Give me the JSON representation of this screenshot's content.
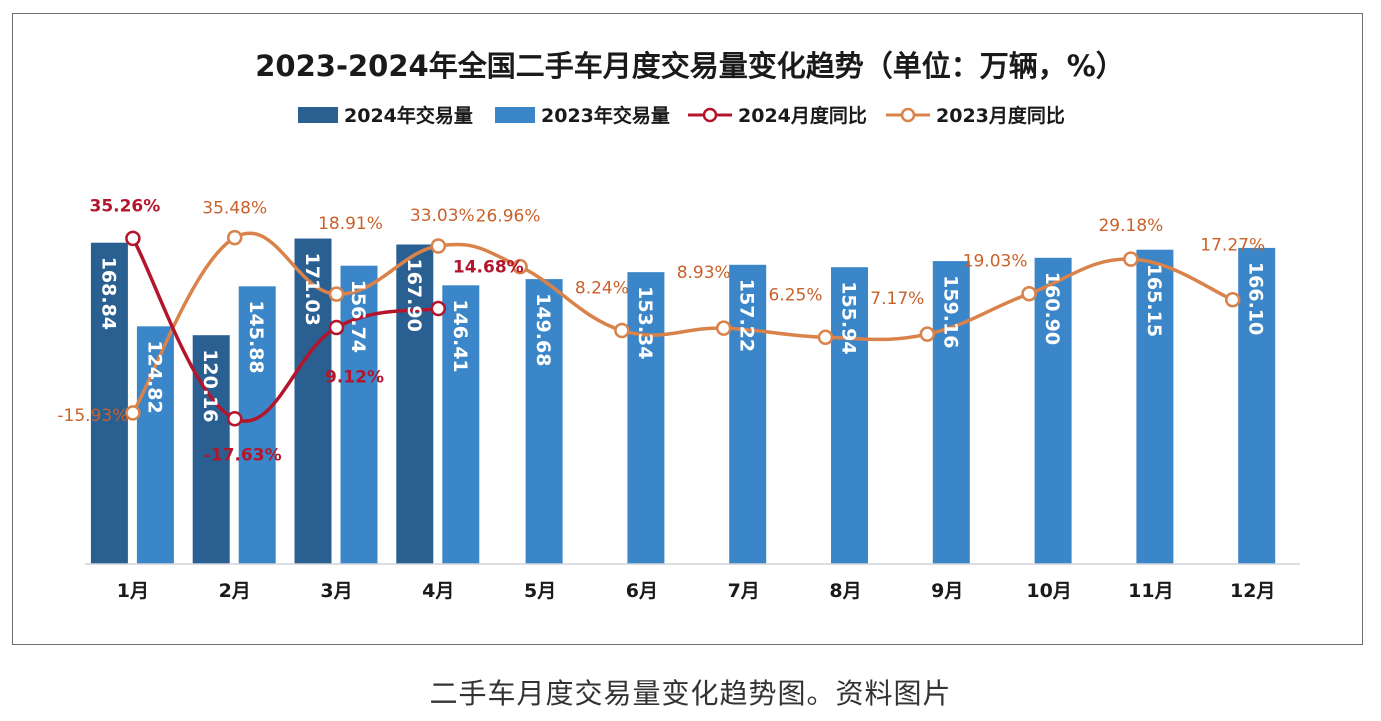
{
  "caption": "二手车月度交易量变化趋势图。资料图片",
  "chart_data": {
    "type": "bar",
    "title": "2023-2024年全国二手车月度交易量变化趋势（单位：万辆，%）",
    "xlabel": "",
    "ylabel": "",
    "categories": [
      "1月",
      "2月",
      "3月",
      "4月",
      "5月",
      "6月",
      "7月",
      "8月",
      "9月",
      "10月",
      "11月",
      "12月"
    ],
    "ylim": [
      0,
      180
    ],
    "y2lim": [
      -40,
      40
    ],
    "grid": false,
    "legend_position": "top-center",
    "colors": {
      "bar2024": "#2a5f92",
      "bar2023": "#3b86c8",
      "line2024": "#b3162c",
      "line2023": "#d9824a"
    },
    "series": [
      {
        "name": "2024年交易量",
        "kind": "bar",
        "values": [
          168.84,
          120.16,
          171.03,
          167.9,
          null,
          null,
          null,
          null,
          null,
          null,
          null,
          null
        ],
        "labels": [
          "168.84",
          "120.16",
          "171.03",
          "167.90"
        ]
      },
      {
        "name": "2023年交易量",
        "kind": "bar",
        "values": [
          124.82,
          145.88,
          156.74,
          146.41,
          149.68,
          153.34,
          157.22,
          155.94,
          159.16,
          160.9,
          165.15,
          166.1
        ],
        "labels": [
          "124.82",
          "145.88",
          "156.74",
          "146.41",
          "149.68",
          "153.34",
          "157.22",
          "155.94",
          "159.16",
          "160.90",
          "165.15",
          "166.10"
        ]
      },
      {
        "name": "2024月度同比",
        "kind": "line",
        "axis": "right",
        "values": [
          35.26,
          -17.63,
          9.12,
          14.68,
          null,
          null,
          null,
          null,
          null,
          null,
          null,
          null
        ],
        "labels": [
          "35.26%",
          "-17.63%",
          "9.12%",
          "14.68%"
        ]
      },
      {
        "name": "2023月度同比",
        "kind": "line",
        "axis": "right",
        "values": [
          -15.93,
          35.48,
          18.91,
          33.03,
          26.96,
          8.24,
          8.93,
          6.25,
          7.17,
          19.03,
          29.18,
          17.27
        ],
        "labels": [
          "-15.93%",
          "35.48%",
          "18.91%",
          "33.03%",
          "26.96%",
          "8.24%",
          "8.93%",
          "6.25%",
          "7.17%",
          "19.03%",
          "29.18%",
          "17.27%"
        ]
      }
    ]
  }
}
